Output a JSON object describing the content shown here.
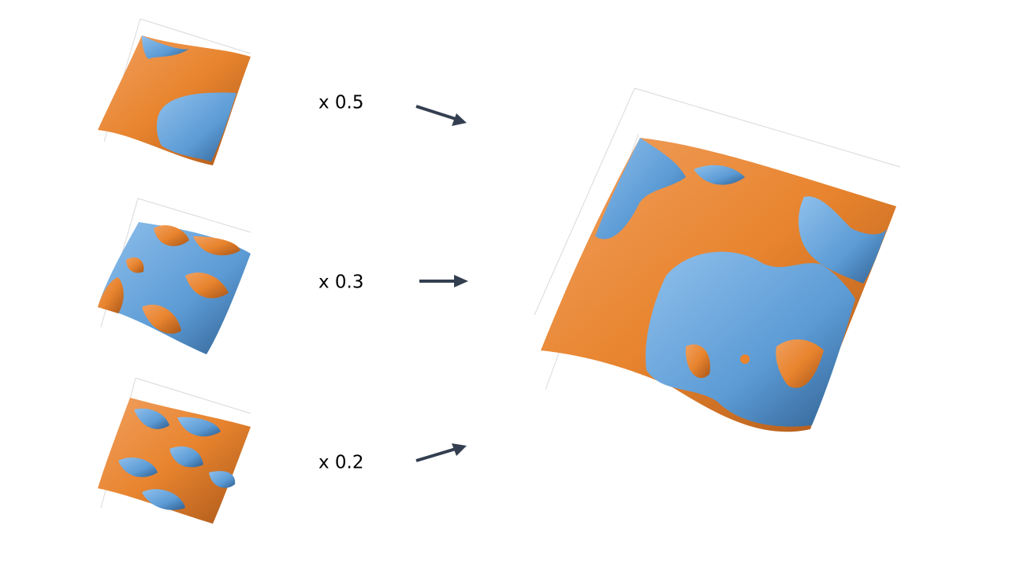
{
  "weights": [
    {
      "label": "x 0.5"
    },
    {
      "label": "x 0.3"
    },
    {
      "label": "x 0.2"
    }
  ]
}
